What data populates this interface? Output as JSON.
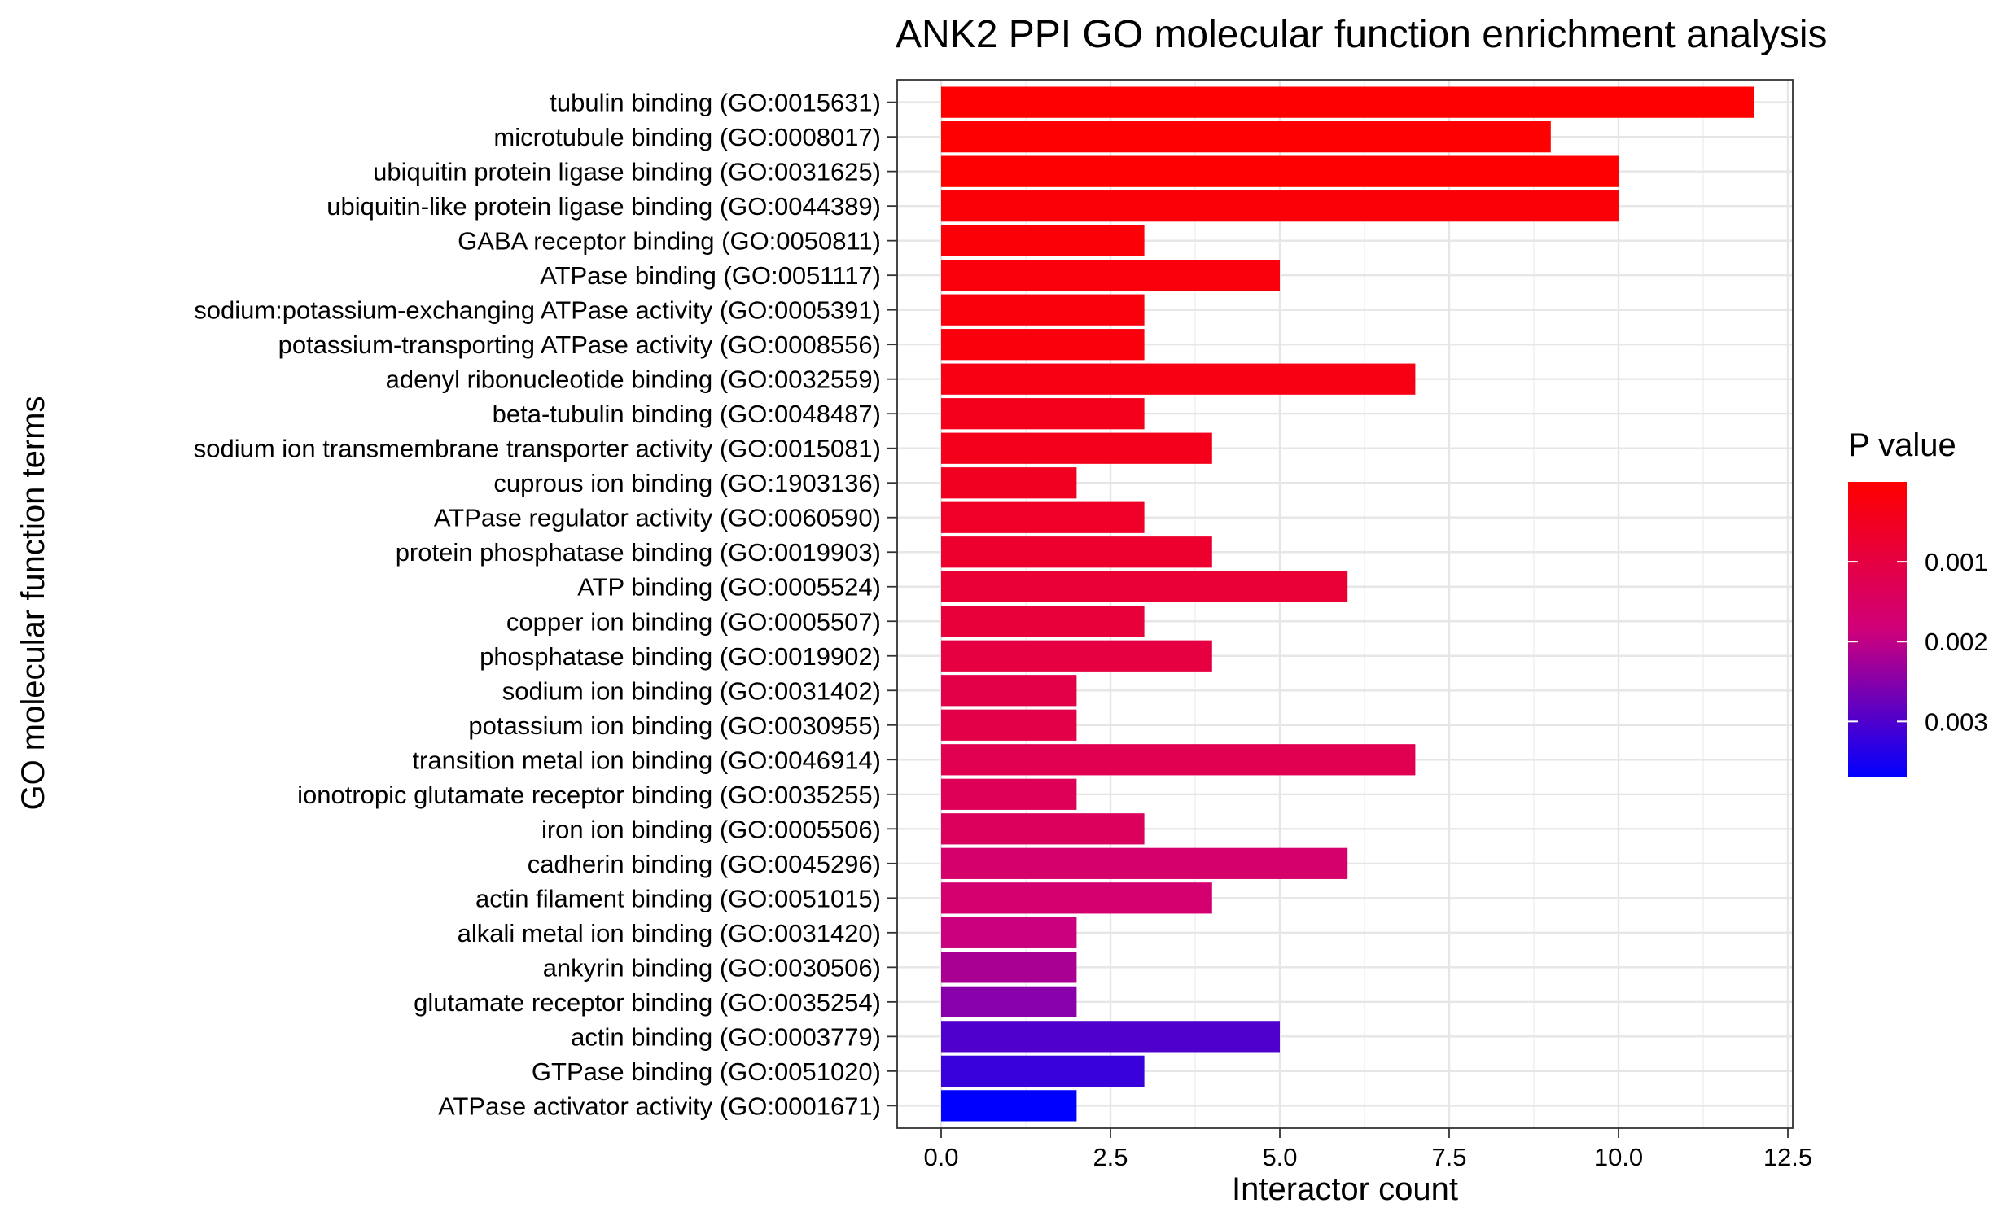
{
  "chart_data": {
    "type": "bar",
    "orientation": "horizontal",
    "title": "ANK2 PPI GO molecular function enrichment analysis",
    "xlabel": "Interactor count",
    "ylabel": "GO molecular function terms",
    "xlim": [
      0,
      12.5
    ],
    "xticks": [
      "0.0",
      "2.5",
      "5.0",
      "7.5",
      "10.0",
      "12.5"
    ],
    "grid": true,
    "categories": [
      "tubulin binding (GO:0015631)",
      "microtubule binding (GO:0008017)",
      "ubiquitin protein ligase binding (GO:0031625)",
      "ubiquitin-like protein ligase binding (GO:0044389)",
      "GABA receptor binding (GO:0050811)",
      "ATPase binding (GO:0051117)",
      "sodium:potassium-exchanging ATPase activity (GO:0005391)",
      "potassium-transporting ATPase activity (GO:0008556)",
      "adenyl ribonucleotide binding (GO:0032559)",
      "beta-tubulin binding (GO:0048487)",
      "sodium ion transmembrane transporter activity (GO:0015081)",
      "cuprous ion binding (GO:1903136)",
      "ATPase regulator activity (GO:0060590)",
      "protein phosphatase binding (GO:0019903)",
      "ATP binding (GO:0005524)",
      "copper ion binding (GO:0005507)",
      "phosphatase binding (GO:0019902)",
      "sodium ion binding (GO:0031402)",
      "potassium ion binding (GO:0030955)",
      "transition metal ion binding (GO:0046914)",
      "ionotropic glutamate receptor binding (GO:0035255)",
      "iron ion binding (GO:0005506)",
      "cadherin binding (GO:0045296)",
      "actin filament binding (GO:0051015)",
      "alkali metal ion binding (GO:0031420)",
      "ankyrin binding (GO:0030506)",
      "glutamate receptor binding (GO:0035254)",
      "actin binding (GO:0003779)",
      "GTPase binding (GO:0051020)",
      "ATPase activator activity (GO:0001671)"
    ],
    "values": [
      12,
      9,
      10,
      10,
      3,
      5,
      3,
      3,
      7,
      3,
      4,
      2,
      3,
      4,
      6,
      3,
      4,
      2,
      2,
      7,
      2,
      3,
      6,
      4,
      2,
      2,
      2,
      5,
      3,
      2
    ],
    "p_values": [
      0.0,
      0.0,
      0.0,
      0.0001,
      0.0001,
      0.0002,
      0.0002,
      0.0002,
      0.0003,
      0.0004,
      0.0004,
      0.0005,
      0.0006,
      0.0007,
      0.0008,
      0.0009,
      0.001,
      0.0011,
      0.0011,
      0.0012,
      0.0013,
      0.0014,
      0.0016,
      0.0017,
      0.0019,
      0.0022,
      0.0025,
      0.003,
      0.0032,
      0.0037
    ],
    "legend": {
      "title": "P value",
      "placement": "right",
      "low_color": "#ff0000",
      "high_color": "#0000ff",
      "p_min": 0.0,
      "p_max": 0.0037,
      "ticks": [
        {
          "value": 0.001,
          "label": "0.001"
        },
        {
          "value": 0.002,
          "label": "0.002"
        },
        {
          "value": 0.003,
          "label": "0.003"
        }
      ]
    }
  }
}
